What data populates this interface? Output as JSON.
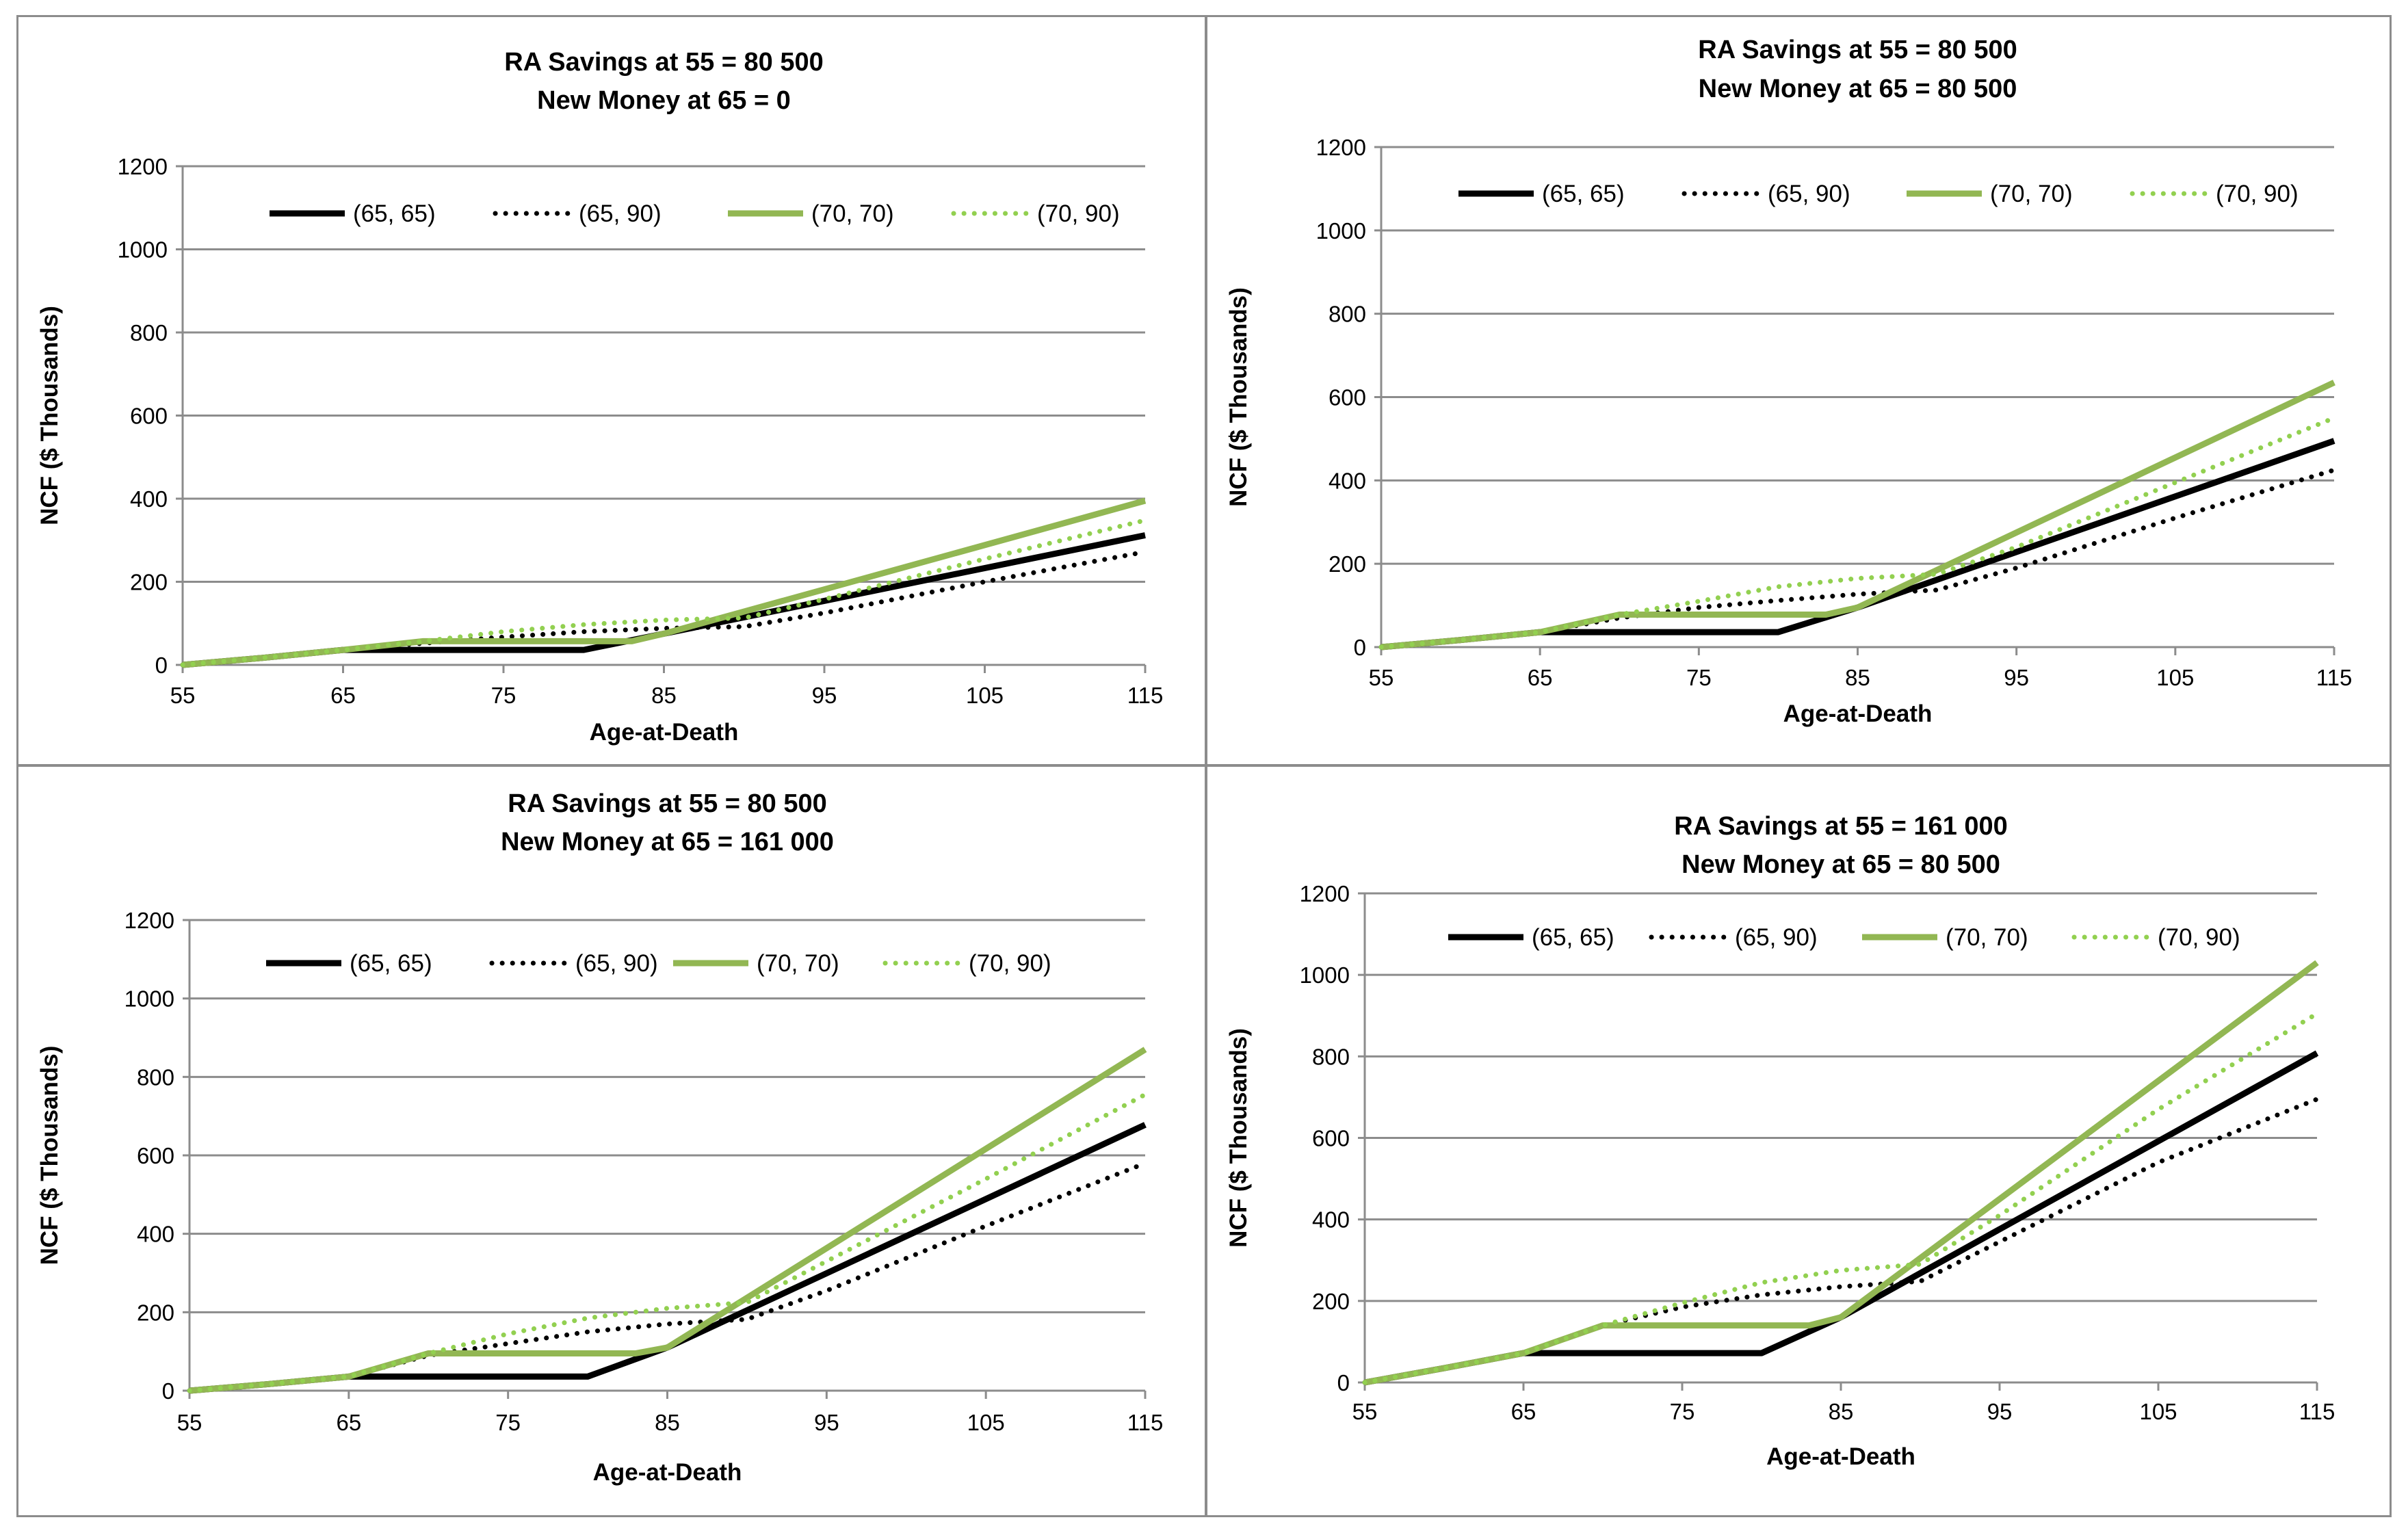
{
  "chart_data": [
    {
      "type": "line",
      "title": [
        "RA Savings at 55 = 80 500",
        "New Money at 65 = 0"
      ],
      "xlabel": "Age-at-Death",
      "ylabel": "NCF ($ Thousands)",
      "xlim": [
        55,
        115
      ],
      "ylim": [
        0,
        1200
      ],
      "xticks": [
        "55",
        "65",
        "75",
        "85",
        "95",
        "105",
        "115"
      ],
      "yticks": [
        "0",
        "200",
        "400",
        "600",
        "800",
        "1000",
        "1200"
      ],
      "legend_position": "top",
      "series": [
        {
          "name": "(65, 65)",
          "color": "#000000",
          "style": "solid",
          "x": [
            55,
            60,
            65,
            80,
            85,
            115
          ],
          "values": [
            0,
            17,
            36,
            36,
            75,
            312
          ]
        },
        {
          "name": "(65, 90)",
          "color": "#000000",
          "style": "dotted",
          "x": [
            55,
            60,
            65,
            70,
            75,
            80,
            85,
            90,
            95,
            105,
            115
          ],
          "values": [
            0,
            17,
            36,
            52,
            67,
            80,
            88,
            92,
            125,
            200,
            272
          ]
        },
        {
          "name": "(70, 70)",
          "color": "#92b753",
          "style": "solid",
          "x": [
            55,
            60,
            65,
            70,
            83,
            85,
            115
          ],
          "values": [
            0,
            17,
            36,
            57,
            57,
            75,
            395
          ]
        },
        {
          "name": "(70, 90)",
          "color": "#92d050",
          "style": "dotted",
          "x": [
            55,
            60,
            65,
            70,
            75,
            80,
            85,
            90,
            95,
            105,
            115
          ],
          "values": [
            0,
            17,
            36,
            57,
            80,
            97,
            108,
            113,
            158,
            255,
            348
          ]
        }
      ]
    },
    {
      "type": "line",
      "title": [
        "RA Savings at 55 = 80 500",
        "New Money at 65 = 80 500"
      ],
      "xlabel": "Age-at-Death",
      "ylabel": "NCF ($ Thousands)",
      "xlim": [
        55,
        115
      ],
      "ylim": [
        0,
        1200
      ],
      "xticks": [
        "55",
        "65",
        "75",
        "85",
        "95",
        "105",
        "115"
      ],
      "yticks": [
        "0",
        "200",
        "400",
        "600",
        "800",
        "1000",
        "1200"
      ],
      "legend_position": "top",
      "series": [
        {
          "name": "(65, 65)",
          "color": "#000000",
          "style": "solid",
          "x": [
            55,
            60,
            65,
            80,
            85,
            115
          ],
          "values": [
            0,
            17,
            36,
            36,
            95,
            495
          ]
        },
        {
          "name": "(65, 90)",
          "color": "#000000",
          "style": "dotted",
          "x": [
            55,
            60,
            65,
            70,
            75,
            80,
            85,
            90,
            95,
            105,
            115
          ],
          "values": [
            0,
            17,
            36,
            70,
            95,
            112,
            127,
            137,
            190,
            310,
            425
          ]
        },
        {
          "name": "(70, 70)",
          "color": "#92b753",
          "style": "solid",
          "x": [
            55,
            60,
            65,
            70,
            83,
            85,
            115
          ],
          "values": [
            0,
            17,
            36,
            78,
            78,
            95,
            635
          ]
        },
        {
          "name": "(70, 90)",
          "color": "#92d050",
          "style": "dotted",
          "x": [
            55,
            60,
            65,
            70,
            75,
            80,
            85,
            90,
            95,
            105,
            115
          ],
          "values": [
            0,
            17,
            36,
            78,
            110,
            145,
            165,
            175,
            240,
            395,
            550
          ]
        }
      ]
    },
    {
      "type": "line",
      "title": [
        "RA Savings at 55 = 80 500",
        "New Money at 65 = 161 000"
      ],
      "xlabel": "Age-at-Death",
      "ylabel": "NCF ($ Thousands)",
      "xlim": [
        55,
        115
      ],
      "ylim": [
        0,
        1200
      ],
      "xticks": [
        "55",
        "65",
        "75",
        "85",
        "95",
        "105",
        "115"
      ],
      "yticks": [
        "0",
        "200",
        "400",
        "600",
        "800",
        "1000",
        "1200"
      ],
      "legend_position": "top",
      "series": [
        {
          "name": "(65, 65)",
          "color": "#000000",
          "style": "solid",
          "x": [
            55,
            60,
            65,
            80,
            85,
            115
          ],
          "values": [
            0,
            17,
            36,
            36,
            110,
            678
          ]
        },
        {
          "name": "(65, 90)",
          "color": "#000000",
          "style": "dotted",
          "x": [
            55,
            60,
            65,
            70,
            75,
            80,
            85,
            90,
            95,
            105,
            115
          ],
          "values": [
            0,
            17,
            36,
            90,
            120,
            150,
            170,
            182,
            255,
            420,
            580
          ]
        },
        {
          "name": "(70, 70)",
          "color": "#92b753",
          "style": "solid",
          "x": [
            55,
            60,
            65,
            70,
            83,
            85,
            115
          ],
          "values": [
            0,
            17,
            36,
            95,
            95,
            110,
            870
          ]
        },
        {
          "name": "(70, 90)",
          "color": "#92d050",
          "style": "dotted",
          "x": [
            55,
            60,
            65,
            70,
            75,
            80,
            85,
            90,
            95,
            105,
            115
          ],
          "values": [
            0,
            17,
            36,
            95,
            145,
            185,
            210,
            225,
            330,
            540,
            755
          ]
        }
      ]
    },
    {
      "type": "line",
      "title": [
        "RA Savings at 55 = 161 000",
        "New Money at 65 = 80 500"
      ],
      "xlabel": "Age-at-Death",
      "ylabel": "NCF ($ Thousands)",
      "xlim": [
        55,
        115
      ],
      "ylim": [
        0,
        1200
      ],
      "xticks": [
        "55",
        "65",
        "75",
        "85",
        "95",
        "105",
        "115"
      ],
      "yticks": [
        "0",
        "200",
        "400",
        "600",
        "800",
        "1000",
        "1200"
      ],
      "legend_position": "top",
      "series": [
        {
          "name": "(65, 65)",
          "color": "#000000",
          "style": "solid",
          "x": [
            55,
            60,
            65,
            80,
            85,
            115
          ],
          "values": [
            0,
            35,
            72,
            72,
            160,
            808
          ]
        },
        {
          "name": "(65, 90)",
          "color": "#000000",
          "style": "dotted",
          "x": [
            55,
            60,
            65,
            70,
            75,
            80,
            85,
            90,
            95,
            105,
            115
          ],
          "values": [
            0,
            35,
            72,
            140,
            185,
            215,
            235,
            248,
            345,
            540,
            695
          ]
        },
        {
          "name": "(70, 70)",
          "color": "#92b753",
          "style": "solid",
          "x": [
            55,
            60,
            65,
            70,
            83,
            85,
            115
          ],
          "values": [
            0,
            35,
            72,
            140,
            140,
            160,
            1030
          ]
        },
        {
          "name": "(70, 90)",
          "color": "#92d050",
          "style": "dotted",
          "x": [
            55,
            60,
            65,
            70,
            75,
            80,
            85,
            90,
            95,
            105,
            115
          ],
          "values": [
            0,
            35,
            72,
            140,
            195,
            245,
            275,
            290,
            410,
            670,
            905
          ]
        }
      ]
    }
  ]
}
